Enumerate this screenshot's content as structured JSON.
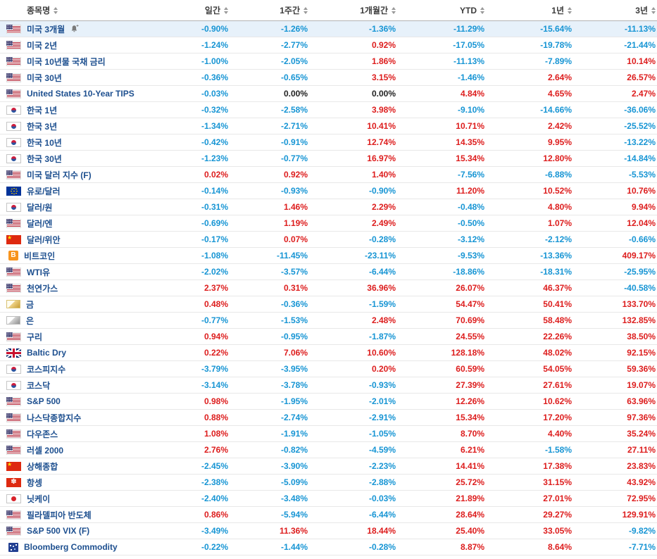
{
  "table": {
    "colors": {
      "positive": "#dd1d1d",
      "negative": "#1795d4",
      "zero": "#222222",
      "name": "#1d4f8f",
      "highlight_row_bg": "#e7f1fa"
    },
    "columns": [
      {
        "key": "name",
        "label": "종목명"
      },
      {
        "key": "daily",
        "label": "일간"
      },
      {
        "key": "week1",
        "label": "1주간"
      },
      {
        "key": "month1",
        "label": "1개월간"
      },
      {
        "key": "ytd",
        "label": "YTD"
      },
      {
        "key": "year1",
        "label": "1년"
      },
      {
        "key": "year3",
        "label": "3년"
      }
    ],
    "icons": {
      "alert_add": "bell-plus-icon"
    },
    "rows": [
      {
        "icon": "flag-us",
        "name": "미국 3개월",
        "highlighted": true,
        "alert_icon": true,
        "values": [
          "-0.90%",
          "-1.26%",
          "-1.36%",
          "-11.29%",
          "-15.64%",
          "-11.13%"
        ]
      },
      {
        "icon": "flag-us",
        "name": "미국 2년",
        "values": [
          "-1.24%",
          "-2.77%",
          "0.92%",
          "-17.05%",
          "-19.78%",
          "-21.44%"
        ]
      },
      {
        "icon": "flag-us",
        "name": "미국 10년물 국채 금리",
        "values": [
          "-1.00%",
          "-2.05%",
          "1.86%",
          "-11.13%",
          "-7.89%",
          "10.14%"
        ]
      },
      {
        "icon": "flag-us",
        "name": "미국 30년",
        "values": [
          "-0.36%",
          "-0.65%",
          "3.15%",
          "-1.46%",
          "2.64%",
          "26.57%"
        ]
      },
      {
        "icon": "flag-us",
        "name": "United States 10-Year TIPS",
        "values": [
          "-0.03%",
          "0.00%",
          "0.00%",
          "4.84%",
          "4.65%",
          "2.47%"
        ]
      },
      {
        "icon": "flag-kr",
        "name": "한국 1년",
        "values": [
          "-0.32%",
          "-2.58%",
          "3.98%",
          "-9.10%",
          "-14.66%",
          "-36.06%"
        ]
      },
      {
        "icon": "flag-kr",
        "name": "한국 3년",
        "values": [
          "-1.34%",
          "-2.71%",
          "10.41%",
          "10.71%",
          "2.42%",
          "-25.52%"
        ]
      },
      {
        "icon": "flag-kr",
        "name": "한국 10년",
        "values": [
          "-0.42%",
          "-0.91%",
          "12.74%",
          "14.35%",
          "9.95%",
          "-13.22%"
        ]
      },
      {
        "icon": "flag-kr",
        "name": "한국 30년",
        "values": [
          "-1.23%",
          "-0.77%",
          "16.97%",
          "15.34%",
          "12.80%",
          "-14.84%"
        ]
      },
      {
        "icon": "flag-us",
        "name": "미국 달러 지수 (F)",
        "values": [
          "0.02%",
          "0.92%",
          "1.40%",
          "-7.56%",
          "-6.88%",
          "-5.53%"
        ]
      },
      {
        "icon": "flag-eu",
        "name": "유로/달러",
        "values": [
          "-0.14%",
          "-0.93%",
          "-0.90%",
          "11.20%",
          "10.52%",
          "10.76%"
        ]
      },
      {
        "icon": "flag-kr",
        "name": "달러/원",
        "values": [
          "-0.31%",
          "1.46%",
          "2.29%",
          "-0.48%",
          "4.80%",
          "9.94%"
        ]
      },
      {
        "icon": "flag-us",
        "name": "달러/엔",
        "values": [
          "-0.69%",
          "1.19%",
          "2.49%",
          "-0.50%",
          "1.07%",
          "12.04%"
        ]
      },
      {
        "icon": "flag-cn",
        "name": "달러/위안",
        "values": [
          "-0.17%",
          "0.07%",
          "-0.28%",
          "-3.12%",
          "-2.12%",
          "-0.66%"
        ]
      },
      {
        "icon": "bitcoin",
        "name": "비트코인",
        "values": [
          "-1.08%",
          "-11.45%",
          "-23.11%",
          "-9.53%",
          "-13.36%",
          "409.17%"
        ]
      },
      {
        "icon": "flag-us",
        "name": "WTI유",
        "values": [
          "-2.02%",
          "-3.57%",
          "-6.44%",
          "-18.86%",
          "-18.31%",
          "-25.95%"
        ]
      },
      {
        "icon": "flag-us",
        "name": "천연가스",
        "values": [
          "2.37%",
          "0.31%",
          "36.96%",
          "26.07%",
          "46.37%",
          "-40.58%"
        ]
      },
      {
        "icon": "gold",
        "name": "금",
        "values": [
          "0.48%",
          "-0.36%",
          "-1.59%",
          "54.47%",
          "50.41%",
          "133.70%"
        ]
      },
      {
        "icon": "silver",
        "name": "은",
        "values": [
          "-0.77%",
          "-1.53%",
          "2.48%",
          "70.69%",
          "58.48%",
          "132.85%"
        ]
      },
      {
        "icon": "flag-us",
        "name": "구리",
        "values": [
          "0.94%",
          "-0.95%",
          "-1.87%",
          "24.55%",
          "22.26%",
          "38.50%"
        ]
      },
      {
        "icon": "flag-gb",
        "name": "Baltic Dry",
        "values": [
          "0.22%",
          "7.06%",
          "10.60%",
          "128.18%",
          "48.02%",
          "92.15%"
        ]
      },
      {
        "icon": "flag-kr",
        "name": "코스피지수",
        "values": [
          "-3.79%",
          "-3.95%",
          "0.20%",
          "60.59%",
          "54.05%",
          "59.36%"
        ]
      },
      {
        "icon": "flag-kr",
        "name": "코스닥",
        "values": [
          "-3.14%",
          "-3.78%",
          "-0.93%",
          "27.39%",
          "27.61%",
          "19.07%"
        ]
      },
      {
        "icon": "flag-us",
        "name": "S&P 500",
        "values": [
          "0.98%",
          "-1.95%",
          "-2.01%",
          "12.26%",
          "10.62%",
          "63.96%"
        ]
      },
      {
        "icon": "flag-us",
        "name": "나스닥종합지수",
        "values": [
          "0.88%",
          "-2.74%",
          "-2.91%",
          "15.34%",
          "17.20%",
          "97.36%"
        ]
      },
      {
        "icon": "flag-us",
        "name": "다우존스",
        "values": [
          "1.08%",
          "-1.91%",
          "-1.05%",
          "8.70%",
          "4.40%",
          "35.24%"
        ]
      },
      {
        "icon": "flag-us",
        "name": "러셀 2000",
        "values": [
          "2.76%",
          "-0.82%",
          "-4.59%",
          "6.21%",
          "-1.58%",
          "27.11%"
        ]
      },
      {
        "icon": "flag-cn",
        "name": "상해종합",
        "values": [
          "-2.45%",
          "-3.90%",
          "-2.23%",
          "14.41%",
          "17.38%",
          "23.83%"
        ]
      },
      {
        "icon": "flag-hk",
        "name": "항셍",
        "values": [
          "-2.38%",
          "-5.09%",
          "-2.88%",
          "25.72%",
          "31.15%",
          "43.92%"
        ]
      },
      {
        "icon": "flag-jp",
        "name": "닛케이",
        "values": [
          "-2.40%",
          "-3.48%",
          "-0.03%",
          "21.89%",
          "27.01%",
          "72.95%"
        ]
      },
      {
        "icon": "flag-us",
        "name": "필라델피아 반도체",
        "values": [
          "0.86%",
          "-5.94%",
          "-6.44%",
          "28.64%",
          "29.27%",
          "129.91%"
        ]
      },
      {
        "icon": "flag-us",
        "name": "S&P 500 VIX (F)",
        "values": [
          "-3.49%",
          "11.36%",
          "18.44%",
          "25.40%",
          "33.05%",
          "-9.82%"
        ]
      },
      {
        "icon": "bloomberg",
        "name": "Bloomberg Commodity",
        "values": [
          "-0.22%",
          "-1.44%",
          "-0.28%",
          "8.87%",
          "8.64%",
          "-7.71%"
        ]
      }
    ]
  }
}
